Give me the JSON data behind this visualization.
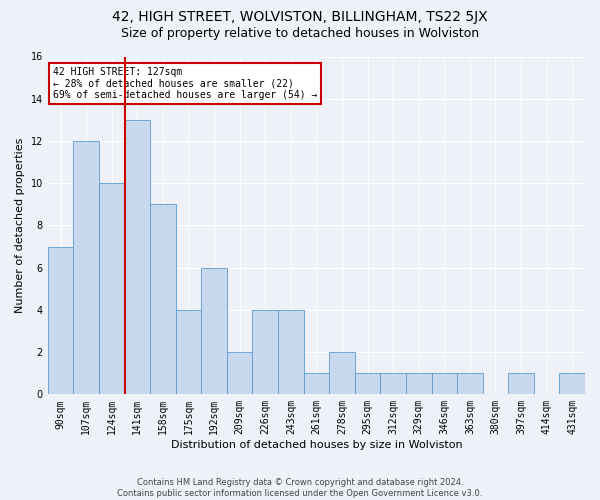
{
  "title": "42, HIGH STREET, WOLVISTON, BILLINGHAM, TS22 5JX",
  "subtitle": "Size of property relative to detached houses in Wolviston",
  "xlabel": "Distribution of detached houses by size in Wolviston",
  "ylabel": "Number of detached properties",
  "bar_labels": [
    "90sqm",
    "107sqm",
    "124sqm",
    "141sqm",
    "158sqm",
    "175sqm",
    "192sqm",
    "209sqm",
    "226sqm",
    "243sqm",
    "261sqm",
    "278sqm",
    "295sqm",
    "312sqm",
    "329sqm",
    "346sqm",
    "363sqm",
    "380sqm",
    "397sqm",
    "414sqm",
    "431sqm"
  ],
  "bar_values": [
    7,
    12,
    10,
    13,
    9,
    4,
    6,
    2,
    4,
    4,
    1,
    2,
    1,
    1,
    1,
    1,
    1,
    0,
    1,
    0,
    1
  ],
  "bar_color": "#c9d9ed",
  "bar_edge_color": "#5b9bd5",
  "vline_x": 2.5,
  "vline_color": "#cc0000",
  "ylim": [
    0,
    16
  ],
  "yticks": [
    0,
    2,
    4,
    6,
    8,
    10,
    12,
    14,
    16
  ],
  "annotation_title": "42 HIGH STREET: 127sqm",
  "annotation_line1": "← 28% of detached houses are smaller (22)",
  "annotation_line2": "69% of semi-detached houses are larger (54) →",
  "annotation_box_facecolor": "#ffffff",
  "annotation_box_edgecolor": "#cc0000",
  "footer_line1": "Contains HM Land Registry data © Crown copyright and database right 2024.",
  "footer_line2": "Contains public sector information licensed under the Open Government Licence v3.0.",
  "background_color": "#eef2f8",
  "grid_color": "#ffffff",
  "title_fontsize": 10,
  "subtitle_fontsize": 9,
  "ylabel_fontsize": 8,
  "xlabel_fontsize": 8,
  "tick_fontsize": 7,
  "footer_fontsize": 6
}
